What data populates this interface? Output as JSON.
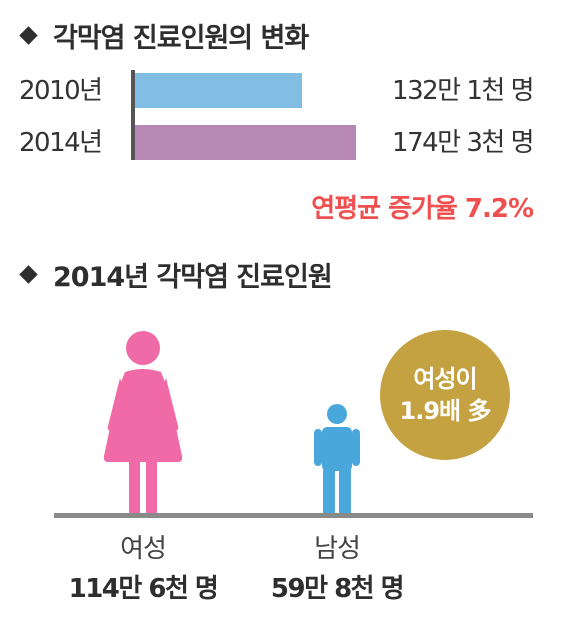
{
  "section1": {
    "title": "각막염 진료인원의 변화",
    "growth_text": "연평균 증가율 7.2%"
  },
  "section2": {
    "title": "2014년 각막염 진료인원",
    "badge_line1": "여성이",
    "badge_line2": "1.9배 多"
  },
  "colors": {
    "bar_2010": "#82bde3",
    "bar_2014": "#b688b3",
    "female": "#ef6aa6",
    "male": "#4aa7dc",
    "badge": "#c4a141",
    "growth_text": "#ef4f4f"
  },
  "chart_data": [
    {
      "type": "bar",
      "orientation": "horizontal",
      "title": "각막염 진료인원의 변화",
      "categories": [
        "2010년",
        "2014년"
      ],
      "values": [
        1321000,
        1743000
      ],
      "value_labels": [
        "132만 1천 명",
        "174만 3천 명"
      ],
      "annotation": "연평균 증가율 7.2%"
    },
    {
      "type": "pictograph",
      "title": "2014년 각막염 진료인원",
      "categories": [
        "여성",
        "남성"
      ],
      "values": [
        1146000,
        598000
      ],
      "value_labels": [
        "114만 6천 명",
        "59만 8천 명"
      ],
      "annotation": "여성이 1.9배 多"
    }
  ]
}
